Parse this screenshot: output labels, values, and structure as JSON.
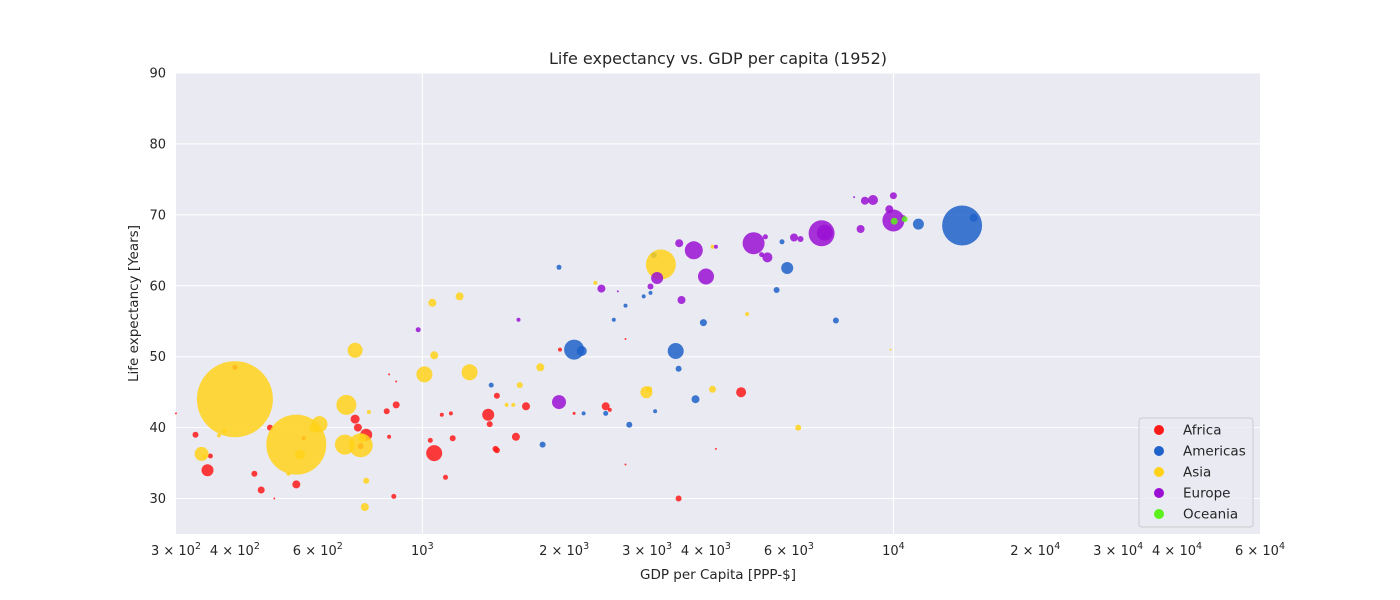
{
  "chart_data": {
    "type": "scatter",
    "title": "Life expectancy vs. GDP per capita (1952)",
    "xlabel": "GDP per Capita [PPP-$]",
    "ylabel": "Life expectancy [Years]",
    "xscale": "log",
    "xlim": [
      300,
      60000
    ],
    "ylim": [
      25,
      90
    ],
    "grid": true,
    "legend_position": "bottom-right",
    "x_ticks": [
      {
        "value": 300,
        "base": "3 × 10",
        "exp": "2"
      },
      {
        "value": 400,
        "base": "4 × 10",
        "exp": "2"
      },
      {
        "value": 600,
        "base": "6 × 10",
        "exp": "2"
      },
      {
        "value": 1000,
        "base": "10",
        "exp": "3"
      },
      {
        "value": 2000,
        "base": "2 × 10",
        "exp": "3"
      },
      {
        "value": 3000,
        "base": "3 × 10",
        "exp": "3"
      },
      {
        "value": 4000,
        "base": "4 × 10",
        "exp": "3"
      },
      {
        "value": 6000,
        "base": "6 × 10",
        "exp": "3"
      },
      {
        "value": 10000,
        "base": "10",
        "exp": "4"
      },
      {
        "value": 20000,
        "base": "2 × 10",
        "exp": "4"
      },
      {
        "value": 30000,
        "base": "3 × 10",
        "exp": "4"
      },
      {
        "value": 40000,
        "base": "4 × 10",
        "exp": "4"
      },
      {
        "value": 60000,
        "base": "6 × 10",
        "exp": "4"
      }
    ],
    "y_ticks": [
      30,
      40,
      50,
      60,
      70,
      80,
      90
    ],
    "series": [
      {
        "name": "Africa",
        "color": "#ff1a1a",
        "points": [
          [
            400,
            48.5,
            2.5
          ],
          [
            330,
            39,
            3
          ],
          [
            350,
            34,
            6
          ],
          [
            355,
            36,
            2.5
          ],
          [
            440,
            33.5,
            3
          ],
          [
            455,
            31.2,
            3.5
          ],
          [
            475,
            40,
            3
          ],
          [
            485,
            30,
            1
          ],
          [
            540,
            32,
            4
          ],
          [
            560,
            38.5,
            2
          ],
          [
            720,
            41.2,
            4.5
          ],
          [
            730,
            40,
            4
          ],
          [
            760,
            39,
            6
          ],
          [
            740,
            37.4,
            3
          ],
          [
            840,
            42.3,
            3
          ],
          [
            850,
            38.7,
            2
          ],
          [
            880,
            43.2,
            3.5
          ],
          [
            870,
            30.3,
            2.5
          ],
          [
            1040,
            38.2,
            2.5
          ],
          [
            1060,
            36.4,
            8
          ],
          [
            1100,
            41.8,
            2
          ],
          [
            1150,
            42,
            2
          ],
          [
            1120,
            33,
            2.5
          ],
          [
            1160,
            38.5,
            3
          ],
          [
            1380,
            41.8,
            6
          ],
          [
            1390,
            40.5,
            3
          ],
          [
            1440,
            44.5,
            3
          ],
          [
            1430,
            37,
            3
          ],
          [
            1440,
            36.8,
            3
          ],
          [
            1580,
            38.7,
            4
          ],
          [
            1660,
            43,
            4
          ],
          [
            2100,
            42,
            1.5
          ],
          [
            2450,
            43,
            4
          ],
          [
            2500,
            42.5,
            2
          ],
          [
            2700,
            52.5,
            1
          ],
          [
            3500,
            30,
            3
          ],
          [
            4750,
            45,
            5
          ],
          [
            4200,
            37,
            1
          ],
          [
            2700,
            34.8,
            1
          ],
          [
            1960,
            51,
            2
          ],
          [
            850,
            47.5,
            1
          ],
          [
            880,
            46.5,
            1
          ],
          [
            300,
            42,
            1
          ]
        ]
      },
      {
        "name": "Americas",
        "color": "#1f62c9",
        "points": [
          [
            1400,
            46,
            2.5
          ],
          [
            1800,
            37.6,
            3
          ],
          [
            1950,
            62.6,
            2.5
          ],
          [
            2100,
            51,
            10
          ],
          [
            2180,
            50.8,
            5
          ],
          [
            2200,
            42,
            2
          ],
          [
            2450,
            42,
            2.5
          ],
          [
            2550,
            55.2,
            2
          ],
          [
            2700,
            57.2,
            2
          ],
          [
            2750,
            40.4,
            3
          ],
          [
            2950,
            58.5,
            2
          ],
          [
            3050,
            59,
            2
          ],
          [
            3100,
            64.3,
            3
          ],
          [
            3120,
            42.3,
            2
          ],
          [
            3450,
            50.8,
            8
          ],
          [
            3500,
            48.3,
            3
          ],
          [
            3800,
            44,
            4
          ],
          [
            3950,
            54.8,
            3.5
          ],
          [
            5650,
            59.4,
            3
          ],
          [
            5800,
            66.2,
            2.5
          ],
          [
            5950,
            62.5,
            6
          ],
          [
            7150,
            67,
            2
          ],
          [
            7550,
            55.1,
            3
          ],
          [
            11300,
            68.7,
            5.5
          ],
          [
            13990,
            68.5,
            20
          ],
          [
            14800,
            69.6,
            4
          ]
        ]
      },
      {
        "name": "Asia",
        "color": "#ffd21a",
        "points": [
          [
            400,
            44,
            38
          ],
          [
            540,
            37.6,
            30
          ],
          [
            340,
            36.3,
            7
          ],
          [
            345,
            35.9,
            2
          ],
          [
            380,
            39.5,
            2
          ],
          [
            370,
            38.9,
            2
          ],
          [
            520,
            33.5,
            2
          ],
          [
            550,
            36.2,
            5
          ],
          [
            605,
            40.5,
            8
          ],
          [
            590,
            40,
            5
          ],
          [
            690,
            43.2,
            10
          ],
          [
            685,
            37.6,
            10
          ],
          [
            740,
            37.5,
            12
          ],
          [
            745,
            38.5,
            4
          ],
          [
            720,
            50.9,
            7.5
          ],
          [
            760,
            32.5,
            3
          ],
          [
            755,
            28.8,
            4
          ],
          [
            770,
            42.2,
            2
          ],
          [
            1010,
            47.5,
            8
          ],
          [
            1050,
            57.6,
            4
          ],
          [
            1060,
            50.2,
            4
          ],
          [
            1200,
            58.5,
            4
          ],
          [
            1260,
            47.8,
            8
          ],
          [
            1510,
            43.2,
            2
          ],
          [
            1560,
            43.2,
            2
          ],
          [
            1610,
            46,
            3
          ],
          [
            1780,
            48.5,
            4
          ],
          [
            2330,
            60.4,
            2
          ],
          [
            2990,
            45,
            6
          ],
          [
            3030,
            45.4,
            3
          ],
          [
            3210,
            63,
            15
          ],
          [
            4130,
            45.4,
            3.5
          ],
          [
            4130,
            65.5,
            2
          ],
          [
            4890,
            56,
            2
          ],
          [
            6280,
            40,
            3
          ],
          [
            9860,
            51,
            1
          ]
        ]
      },
      {
        "name": "Europe",
        "color": "#9b10d4",
        "points": [
          [
            980,
            53.8,
            2.5
          ],
          [
            1600,
            55.2,
            2
          ],
          [
            1950,
            43.6,
            7
          ],
          [
            2400,
            59.6,
            4
          ],
          [
            2600,
            59.2,
            1
          ],
          [
            3050,
            59.9,
            3
          ],
          [
            3150,
            61.1,
            6
          ],
          [
            3510,
            66,
            4
          ],
          [
            3550,
            58,
            4
          ],
          [
            3770,
            65,
            9
          ],
          [
            4000,
            61.3,
            8
          ],
          [
            4200,
            65.5,
            2
          ],
          [
            5050,
            66,
            11
          ],
          [
            5250,
            64.4,
            2.5
          ],
          [
            5350,
            66.9,
            2.5
          ],
          [
            5400,
            64,
            5
          ],
          [
            6150,
            66.8,
            4
          ],
          [
            6350,
            66.6,
            3
          ],
          [
            7040,
            67.4,
            13
          ],
          [
            7150,
            67.5,
            8
          ],
          [
            8250,
            72.5,
            1
          ],
          [
            8520,
            68,
            4
          ],
          [
            8700,
            72,
            4
          ],
          [
            9050,
            72.1,
            5
          ],
          [
            9800,
            70.8,
            4
          ],
          [
            10000,
            72.7,
            3.5
          ],
          [
            10000,
            69.2,
            11
          ],
          [
            10500,
            69.6,
            2.5
          ]
        ]
      },
      {
        "name": "Oceania",
        "color": "#5cf11a",
        "points": [
          [
            10040,
            69.1,
            3.5
          ],
          [
            10560,
            69.4,
            3
          ]
        ]
      }
    ]
  }
}
